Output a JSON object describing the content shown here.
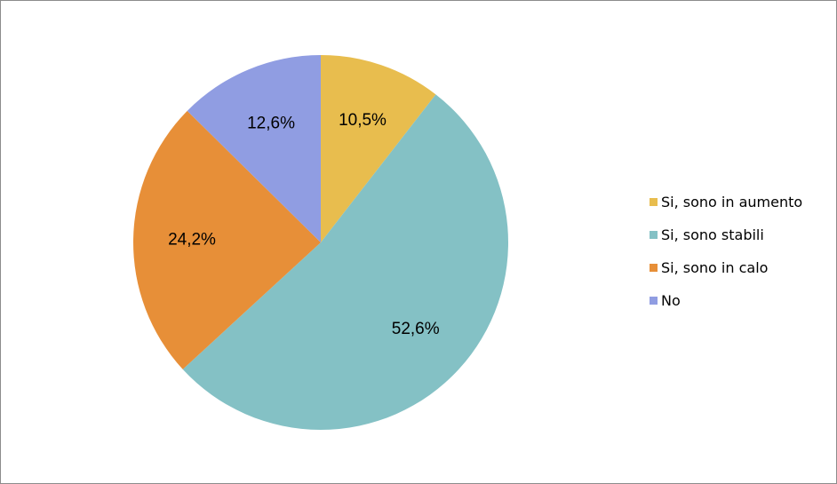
{
  "chart_data": {
    "type": "pie",
    "categories": [
      "Si, sono in aumento",
      "Si, sono stabili",
      "Si, sono in calo",
      "No"
    ],
    "values": [
      10.5,
      52.6,
      24.2,
      12.6
    ],
    "value_labels": [
      "10,5%",
      "52,6%",
      "24,2%",
      "12,6%"
    ],
    "colors": [
      "#e8bd4e",
      "#84c1c5",
      "#e78f38",
      "#909de2"
    ],
    "start_angle": "top, clockwise",
    "legend": "right",
    "title": ""
  }
}
